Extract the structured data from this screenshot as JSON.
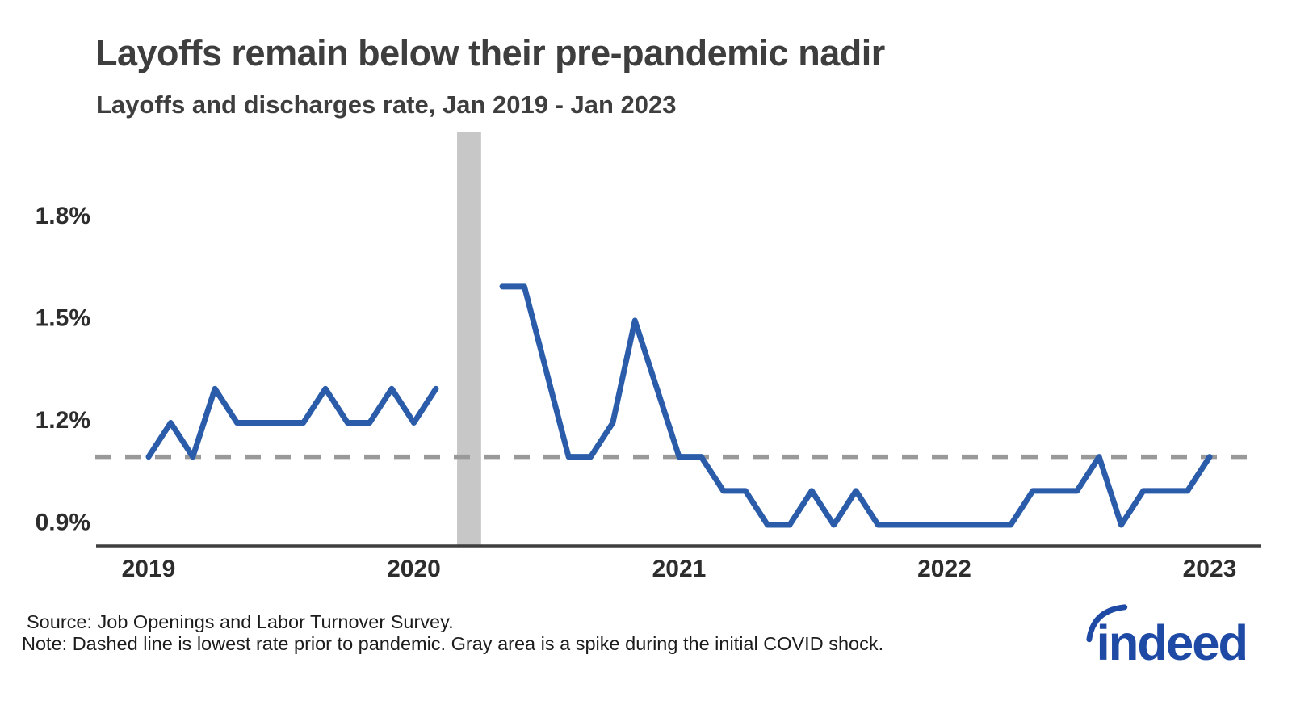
{
  "header": {
    "title": "Layoffs remain below their pre-pandemic nadir",
    "subtitle": "Layoffs and discharges rate, Jan 2019 - Jan 2023"
  },
  "chart_data": {
    "type": "line",
    "title": "Layoffs remain below their pre-pandemic nadir",
    "subtitle": "Layoffs and discharges rate, Jan 2019 - Jan 2023",
    "unit": "%",
    "grid": false,
    "legend": false,
    "x_tick_labels": [
      "2019",
      "2020",
      "2021",
      "2022",
      "2023"
    ],
    "x_tick_month_indices": [
      0,
      12,
      24,
      36,
      48
    ],
    "y_tick_labels": [
      "1.8%",
      "1.5%",
      "1.2%",
      "0.9%"
    ],
    "y_tick_values": [
      1.8,
      1.5,
      1.2,
      0.9
    ],
    "ylim": [
      0.83,
      2.05
    ],
    "series": [
      {
        "name": "Layoffs and discharges rate",
        "color": "#2a5caa",
        "x_months": [
          "2019-01",
          "2019-02",
          "2019-03",
          "2019-04",
          "2019-05",
          "2019-06",
          "2019-07",
          "2019-08",
          "2019-09",
          "2019-10",
          "2019-11",
          "2019-12",
          "2020-01",
          "2020-02",
          "2020-03",
          "2020-04",
          "2020-05",
          "2020-06",
          "2020-07",
          "2020-08",
          "2020-09",
          "2020-10",
          "2020-11",
          "2020-12",
          "2021-01",
          "2021-02",
          "2021-03",
          "2021-04",
          "2021-05",
          "2021-06",
          "2021-07",
          "2021-08",
          "2021-09",
          "2021-10",
          "2021-11",
          "2021-12",
          "2022-01",
          "2022-02",
          "2022-03",
          "2022-04",
          "2022-05",
          "2022-06",
          "2022-07",
          "2022-08",
          "2022-09",
          "2022-10",
          "2022-11",
          "2022-12",
          "2023-01"
        ],
        "values": [
          1.1,
          1.2,
          1.1,
          1.3,
          1.2,
          1.2,
          1.2,
          1.2,
          1.3,
          1.2,
          1.2,
          1.3,
          1.2,
          1.3,
          null,
          null,
          1.6,
          1.6,
          1.35,
          1.1,
          1.1,
          1.2,
          1.5,
          1.3,
          1.1,
          1.1,
          1.0,
          1.0,
          0.9,
          0.9,
          1.0,
          0.9,
          1.0,
          0.9,
          0.9,
          0.9,
          0.9,
          0.9,
          0.9,
          0.9,
          1.0,
          1.0,
          1.0,
          1.1,
          0.9,
          1.0,
          1.0,
          1.0,
          1.1
        ]
      }
    ],
    "reference_line": {
      "value": 1.1,
      "style": "dashed",
      "color": "#999999",
      "meaning": "lowest rate prior to pandemic"
    },
    "shaded_region": {
      "from_month": "2020-03",
      "to_month": "2020-04",
      "from_index": 14,
      "to_index": 15,
      "color": "#c7c7c7",
      "meaning": "spike during the initial COVID shock"
    }
  },
  "footer": {
    "source": "Source: Job Openings and Labor Turnover Survey.",
    "note": "Note: Dashed line is lowest rate prior to pandemic. Gray area is a spike during the initial COVID shock.",
    "logo_text": "indeed"
  },
  "colors": {
    "line": "#2a5caa",
    "dashed_reference": "#999999",
    "covid_band": "#c7c7c7",
    "axis": "#3f3f3f",
    "logo_blue": "#1e49a5",
    "title_text": "#3e3e3e"
  }
}
